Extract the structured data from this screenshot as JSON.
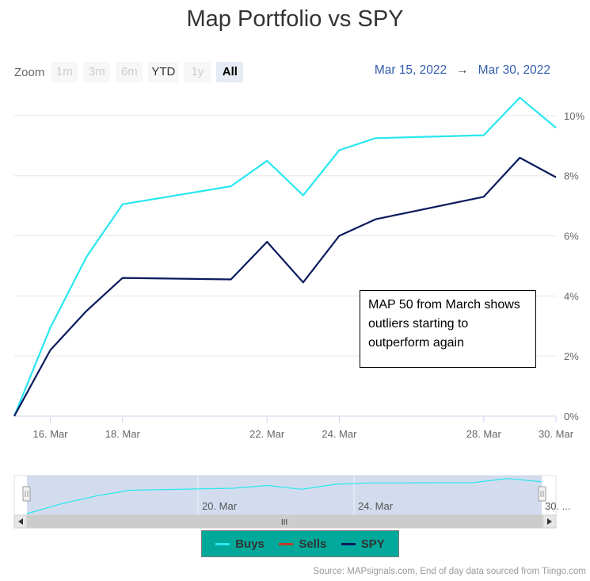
{
  "title": "Map Portfolio vs SPY",
  "zoom": {
    "label": "Zoom",
    "buttons": [
      {
        "label": "1m",
        "state": "disabled"
      },
      {
        "label": "3m",
        "state": "disabled"
      },
      {
        "label": "6m",
        "state": "disabled"
      },
      {
        "label": "YTD",
        "state": "enabled"
      },
      {
        "label": "1y",
        "state": "disabled"
      },
      {
        "label": "All",
        "state": "selected"
      }
    ]
  },
  "range": {
    "from": "Mar 15, 2022",
    "arrow": "→",
    "to": "Mar 30, 2022"
  },
  "annotation": "MAP 50 from March shows outliers starting to outperform again",
  "navigator": {
    "labels": [
      "20. Mar",
      "24. Mar",
      "30. ..."
    ],
    "scrollbar_grip": "III"
  },
  "legend": [
    {
      "name": "Buys",
      "color": "#29e7ef"
    },
    {
      "name": "Sells",
      "color": "#c0392b"
    },
    {
      "name": "SPY",
      "color": "#0c1a5e"
    }
  ],
  "source": "Source: MAPsignals.com, End of day data sourced from Tiingo.com",
  "chart_data": {
    "type": "line",
    "x": [
      "2022-03-15",
      "2022-03-16",
      "2022-03-17",
      "2022-03-18",
      "2022-03-21",
      "2022-03-22",
      "2022-03-23",
      "2022-03-24",
      "2022-03-25",
      "2022-03-28",
      "2022-03-29",
      "2022-03-30"
    ],
    "x_tick_labels": [
      "16. Mar",
      "18. Mar",
      "22. Mar",
      "24. Mar",
      "28. Mar",
      "30. Mar"
    ],
    "y_tick_labels": [
      "0%",
      "2%",
      "4%",
      "6%",
      "8%",
      "10%"
    ],
    "ylim": [
      0,
      11
    ],
    "series": [
      {
        "name": "Buys",
        "color": "#29e7ef",
        "values": [
          0.0,
          2.95,
          5.3,
          7.05,
          7.65,
          8.5,
          7.35,
          8.85,
          9.25,
          9.35,
          10.6,
          9.6
        ]
      },
      {
        "name": "SPY",
        "color": "#0c1a5e",
        "values": [
          0.0,
          2.2,
          3.5,
          4.6,
          4.55,
          5.8,
          4.45,
          6.0,
          6.55,
          7.3,
          8.6,
          7.95
        ]
      }
    ],
    "grid": true,
    "legend_position": "bottom"
  }
}
